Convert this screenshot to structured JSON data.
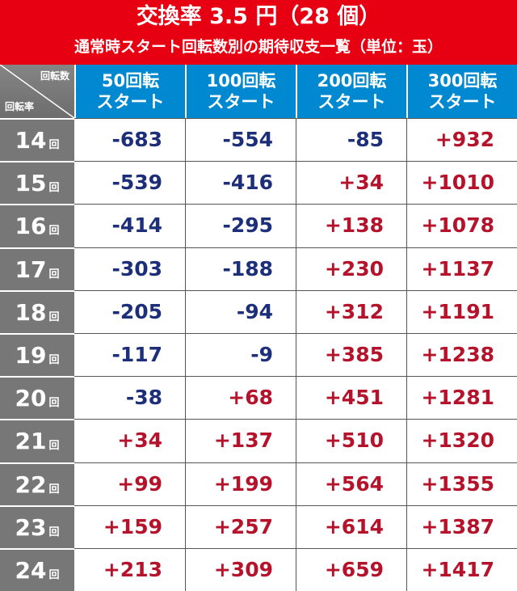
{
  "header": {
    "title": "交換率 3.5 円（28 個）",
    "subtitle": "通常時スタート回転数別の期待収支一覧（単位：玉）"
  },
  "corner": {
    "top_label": "回転数",
    "bottom_label": "回転率"
  },
  "columns": [
    {
      "line1": "50回転",
      "line2": "スタート"
    },
    {
      "line1": "100回転",
      "line2": "スタート"
    },
    {
      "line1": "200回転",
      "line2": "スタート"
    },
    {
      "line1": "300回転",
      "line2": "スタート"
    }
  ],
  "row_unit": "回",
  "rows": [
    {
      "rate": "14",
      "values": [
        "-683",
        "-554",
        "-85",
        "+932"
      ]
    },
    {
      "rate": "15",
      "values": [
        "-539",
        "-416",
        "+34",
        "+1010"
      ]
    },
    {
      "rate": "16",
      "values": [
        "-414",
        "-295",
        "+138",
        "+1078"
      ]
    },
    {
      "rate": "17",
      "values": [
        "-303",
        "-188",
        "+230",
        "+1137"
      ]
    },
    {
      "rate": "18",
      "values": [
        "-205",
        "-94",
        "+312",
        "+1191"
      ]
    },
    {
      "rate": "19",
      "values": [
        "-117",
        "-9",
        "+385",
        "+1238"
      ]
    },
    {
      "rate": "20",
      "values": [
        "-38",
        "+68",
        "+451",
        "+1281"
      ]
    },
    {
      "rate": "21",
      "values": [
        "+34",
        "+137",
        "+510",
        "+1320"
      ]
    },
    {
      "rate": "22",
      "values": [
        "+99",
        "+199",
        "+564",
        "+1355"
      ]
    },
    {
      "rate": "23",
      "values": [
        "+159",
        "+257",
        "+614",
        "+1387"
      ]
    },
    {
      "rate": "24",
      "values": [
        "+213",
        "+309",
        "+659",
        "+1417"
      ]
    }
  ],
  "colors": {
    "header_red": "#e60012",
    "column_blue": "#0089d0",
    "row_gray": "#777777",
    "negative": "#1e2f7a",
    "positive": "#b5122b"
  }
}
